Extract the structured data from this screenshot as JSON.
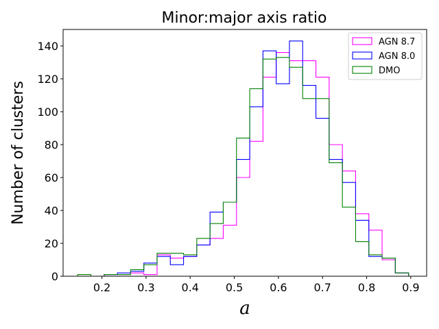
{
  "chart_data": {
    "type": "histogram",
    "title": "Minor:major axis ratio",
    "xlabel": "a",
    "ylabel": "Number of clusters",
    "xlim": [
      0.112,
      0.936
    ],
    "ylim": [
      0,
      150
    ],
    "xticks": [
      "0.2",
      "0.3",
      "0.4",
      "0.5",
      "0.6",
      "0.7",
      "0.8",
      "0.9"
    ],
    "yticks": [
      "0",
      "20",
      "40",
      "60",
      "80",
      "100",
      "120",
      "140"
    ],
    "legend_position": "top-right",
    "bin_edges": [
      0.145,
      0.175,
      0.205,
      0.235,
      0.265,
      0.295,
      0.325,
      0.355,
      0.385,
      0.415,
      0.445,
      0.475,
      0.505,
      0.535,
      0.565,
      0.595,
      0.625,
      0.655,
      0.685,
      0.715,
      0.745,
      0.775,
      0.805,
      0.835,
      0.865,
      0.895
    ],
    "series": [
      {
        "name": "AGN 8.7",
        "color": "#ff00ff",
        "values": [
          0,
          0,
          1,
          1,
          2,
          1,
          13,
          11,
          12,
          19,
          23,
          31,
          60,
          82,
          121,
          136,
          131,
          131,
          121,
          80,
          64,
          38,
          28,
          10,
          2
        ]
      },
      {
        "name": "AGN 8.0",
        "color": "#0000ff",
        "values": [
          0,
          0,
          1,
          2,
          3,
          8,
          12,
          7,
          12,
          19,
          39,
          45,
          71,
          103,
          137,
          117,
          143,
          116,
          96,
          71,
          57,
          34,
          12,
          11,
          2
        ]
      },
      {
        "name": "DMO",
        "color": "#008000",
        "values": [
          1,
          0,
          1,
          1,
          4,
          7,
          14,
          14,
          13,
          23,
          32,
          45,
          84,
          114,
          132,
          133,
          127,
          108,
          108,
          69,
          42,
          21,
          13,
          11,
          2
        ]
      }
    ]
  }
}
